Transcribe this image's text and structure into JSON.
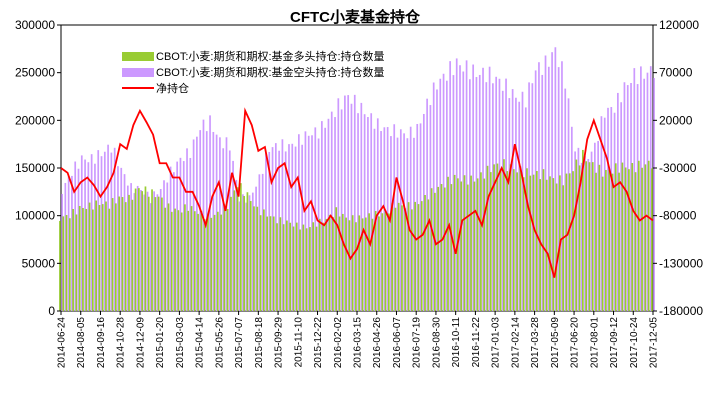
{
  "chart_data": {
    "type": "bar+line",
    "title": "CFTC小麦基金持仓",
    "legend_position": "top-left",
    "left_axis": {
      "ylim": [
        0,
        300000
      ],
      "ticks": [
        "0",
        "50000",
        "100000",
        "150000",
        "200000",
        "250000",
        "300000"
      ]
    },
    "right_axis": {
      "ylim": [
        -180000,
        120000
      ],
      "ticks": [
        "-180000",
        "-130000",
        "-80000",
        "-30000",
        "20000",
        "70000",
        "120000"
      ]
    },
    "x_tick_labels": [
      "2014-06-24",
      "2014-08-05",
      "2014-09-16",
      "2014-10-28",
      "2014-12-09",
      "2015-01-20",
      "2015-03-03",
      "2015-04-14",
      "2015-05-26",
      "2015-07-07",
      "2015-08-18",
      "2015-09-29",
      "2015-11-10",
      "2015-12-22",
      "2016-02-02",
      "2016-03-15",
      "2016-04-26",
      "2016-06-07",
      "2016-07-19",
      "2016-08-30",
      "2016-10-11",
      "2016-11-22",
      "2017-01-03",
      "2017-02-14",
      "2017-03-28",
      "2017-05-09",
      "2017-06-20",
      "2017-08-01",
      "2017-09-12",
      "2017-10-24",
      "2017-12-05"
    ],
    "series": [
      {
        "name": "CBOT:小麦:期货和期权:基金多头持仓:持仓数量",
        "type": "bar",
        "axis": "left",
        "color": "#99cc33",
        "x": [
          "2014-06-24",
          "2014-07-15",
          "2014-08-05",
          "2014-08-26",
          "2014-09-16",
          "2014-10-07",
          "2014-10-28",
          "2014-11-18",
          "2014-12-09",
          "2014-12-30",
          "2015-01-20",
          "2015-02-10",
          "2015-03-03",
          "2015-03-24",
          "2015-04-14",
          "2015-05-05",
          "2015-05-26",
          "2015-06-16",
          "2015-07-07",
          "2015-07-28",
          "2015-08-18",
          "2015-09-08",
          "2015-09-29",
          "2015-10-20",
          "2015-11-10",
          "2015-12-01",
          "2015-12-22",
          "2016-01-12",
          "2016-02-02",
          "2016-02-23",
          "2016-03-15",
          "2016-04-05",
          "2016-04-26",
          "2016-05-17",
          "2016-06-07",
          "2016-06-28",
          "2016-07-19",
          "2016-08-09",
          "2016-08-30",
          "2016-09-20",
          "2016-10-11",
          "2016-11-01",
          "2016-11-22",
          "2016-12-13",
          "2017-01-03",
          "2017-01-24",
          "2017-02-14",
          "2017-03-07",
          "2017-03-28",
          "2017-04-18",
          "2017-05-09",
          "2017-05-30",
          "2017-06-20",
          "2017-07-11",
          "2017-08-01",
          "2017-08-22",
          "2017-09-12",
          "2017-10-03",
          "2017-10-24",
          "2017-11-14",
          "2017-12-05"
        ],
        "values": [
          100000,
          103000,
          110000,
          112000,
          115000,
          113000,
          120000,
          118000,
          130000,
          125000,
          120000,
          108000,
          104000,
          108000,
          102000,
          97000,
          100000,
          108000,
          130000,
          118000,
          103000,
          98000,
          92000,
          90000,
          86000,
          84000,
          88000,
          92000,
          100000,
          93000,
          92000,
          94000,
          96000,
          97000,
          106000,
          104000,
          105000,
          112000,
          120000,
          126000,
          132000,
          130000,
          130000,
          136000,
          144000,
          145000,
          141000,
          138000,
          136000,
          136000,
          131000,
          130000,
          142000,
          156000,
          146000,
          139000,
          142000,
          146000,
          145000,
          148000,
          150000
        ]
      },
      {
        "name": "CBOT:小麦:期货和期权:基金空头持仓:持仓数量",
        "type": "bar",
        "axis": "left",
        "color": "#cc99ff",
        "x": [
          "2014-06-24",
          "2014-07-15",
          "2014-08-05",
          "2014-08-26",
          "2014-09-16",
          "2014-10-07",
          "2014-10-28",
          "2014-11-18",
          "2014-12-09",
          "2014-12-30",
          "2015-01-20",
          "2015-02-10",
          "2015-03-03",
          "2015-03-24",
          "2015-04-14",
          "2015-05-05",
          "2015-05-26",
          "2015-06-16",
          "2015-07-07",
          "2015-07-28",
          "2015-08-18",
          "2015-09-08",
          "2015-09-29",
          "2015-10-20",
          "2015-11-10",
          "2015-12-01",
          "2015-12-22",
          "2016-01-12",
          "2016-02-02",
          "2016-02-23",
          "2016-03-15",
          "2016-04-05",
          "2016-04-26",
          "2016-05-17",
          "2016-06-07",
          "2016-06-28",
          "2016-07-19",
          "2016-08-09",
          "2016-08-30",
          "2016-09-20",
          "2016-10-11",
          "2016-11-01",
          "2016-11-22",
          "2016-12-13",
          "2017-01-03",
          "2017-01-24",
          "2017-02-14",
          "2017-03-07",
          "2017-03-28",
          "2017-04-18",
          "2017-05-09",
          "2017-05-30",
          "2017-06-20",
          "2017-07-11",
          "2017-08-01",
          "2017-08-22",
          "2017-09-12",
          "2017-10-03",
          "2017-10-24",
          "2017-11-14",
          "2017-12-05"
        ],
        "values": [
          130000,
          150000,
          163000,
          162000,
          168000,
          175000,
          150000,
          130000,
          128000,
          118000,
          128000,
          145000,
          158000,
          165000,
          190000,
          195000,
          175000,
          170000,
          115000,
          115000,
          135000,
          165000,
          168000,
          166000,
          172000,
          178000,
          180000,
          192000,
          205000,
          215000,
          205000,
          195000,
          185000,
          180000,
          178000,
          175000,
          180000,
          205000,
          225000,
          235000,
          245000,
          240000,
          235000,
          235000,
          230000,
          222000,
          212000,
          210000,
          240000,
          245000,
          260000,
          230000,
          162000,
          150000,
          165000,
          200000,
          205000,
          225000,
          238000,
          240000,
          245000
        ]
      },
      {
        "name": "净持仓",
        "type": "line",
        "axis": "right",
        "color": "#ff0000",
        "x": [
          "2014-06-24",
          "2014-07-08",
          "2014-07-22",
          "2014-08-05",
          "2014-08-19",
          "2014-09-02",
          "2014-09-16",
          "2014-09-30",
          "2014-10-14",
          "2014-10-28",
          "2014-11-11",
          "2014-11-25",
          "2014-12-09",
          "2014-12-23",
          "2015-01-06",
          "2015-01-20",
          "2015-02-03",
          "2015-02-17",
          "2015-03-03",
          "2015-03-17",
          "2015-03-31",
          "2015-04-14",
          "2015-04-28",
          "2015-05-12",
          "2015-05-26",
          "2015-06-09",
          "2015-06-23",
          "2015-07-07",
          "2015-07-21",
          "2015-08-04",
          "2015-08-18",
          "2015-09-01",
          "2015-09-15",
          "2015-09-29",
          "2015-10-13",
          "2015-10-27",
          "2015-11-10",
          "2015-11-24",
          "2015-12-08",
          "2015-12-22",
          "2016-01-05",
          "2016-01-19",
          "2016-02-02",
          "2016-02-16",
          "2016-03-01",
          "2016-03-15",
          "2016-03-29",
          "2016-04-12",
          "2016-04-26",
          "2016-05-10",
          "2016-05-24",
          "2016-06-07",
          "2016-06-21",
          "2016-07-05",
          "2016-07-19",
          "2016-08-02",
          "2016-08-16",
          "2016-08-30",
          "2016-09-13",
          "2016-09-27",
          "2016-10-11",
          "2016-10-25",
          "2016-11-08",
          "2016-11-22",
          "2016-12-06",
          "2016-12-20",
          "2017-01-03",
          "2017-01-17",
          "2017-01-31",
          "2017-02-14",
          "2017-02-28",
          "2017-03-14",
          "2017-03-28",
          "2017-04-11",
          "2017-04-25",
          "2017-05-09",
          "2017-05-23",
          "2017-06-06",
          "2017-06-20",
          "2017-07-04",
          "2017-07-18",
          "2017-08-01",
          "2017-08-15",
          "2017-08-29",
          "2017-09-12",
          "2017-09-26",
          "2017-10-10",
          "2017-10-24",
          "2017-11-07",
          "2017-11-21",
          "2017-12-05"
        ],
        "values": [
          -30000,
          -35000,
          -55000,
          -45000,
          -40000,
          -48000,
          -60000,
          -50000,
          -35000,
          -5000,
          -10000,
          15000,
          30000,
          18000,
          5000,
          -25000,
          -25000,
          -40000,
          -40000,
          -55000,
          -55000,
          -70000,
          -90000,
          -60000,
          -45000,
          -75000,
          -35000,
          -60000,
          30000,
          15000,
          -12000,
          -8000,
          -45000,
          -30000,
          -25000,
          -50000,
          -40000,
          -75000,
          -65000,
          -85000,
          -90000,
          -80000,
          -90000,
          -110000,
          -125000,
          -115000,
          -95000,
          -110000,
          -80000,
          -70000,
          -85000,
          -40000,
          -65000,
          -95000,
          -105000,
          -100000,
          -85000,
          -110000,
          -105000,
          -90000,
          -120000,
          -85000,
          -80000,
          -75000,
          -90000,
          -60000,
          -45000,
          -30000,
          -45000,
          -5000,
          -35000,
          -70000,
          -95000,
          -110000,
          -120000,
          -145000,
          -105000,
          -100000,
          -80000,
          -45000,
          0,
          20000,
          0,
          -20000,
          -50000,
          -45000,
          -55000,
          -75000,
          -85000,
          -80000,
          -85000
        ]
      }
    ]
  }
}
